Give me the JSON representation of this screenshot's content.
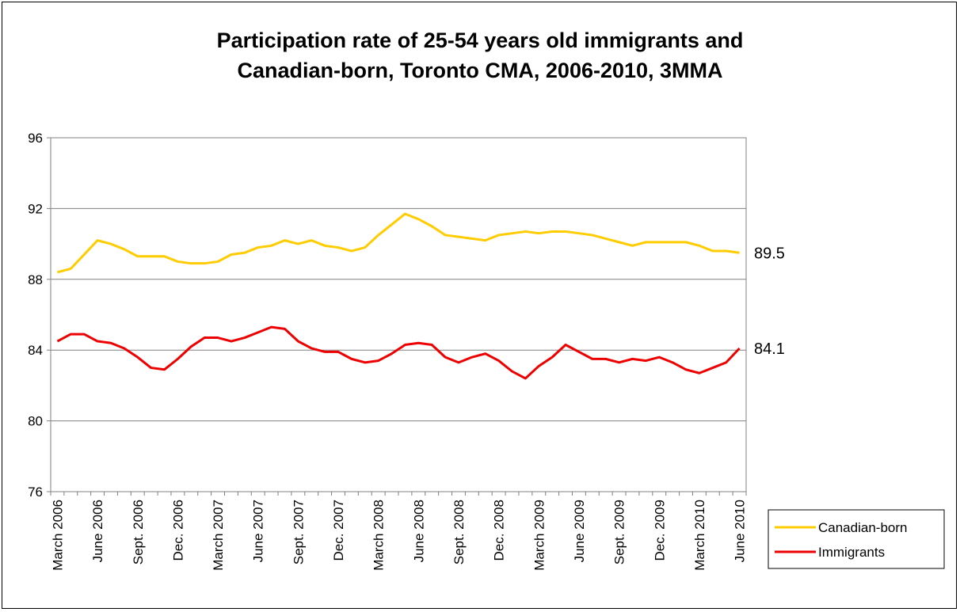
{
  "chart_data": {
    "type": "line",
    "title_line1": "Participation rate of 25-54 years old immigrants and",
    "title_line2": "Canadian-born, Toronto CMA, 2006-2010, 3MMA",
    "xlabel": "",
    "ylabel": "",
    "ylim": [
      76,
      96
    ],
    "yticks": [
      76,
      80,
      84,
      88,
      92,
      96
    ],
    "grid": true,
    "legend_position": "bottom-right",
    "x_tick_labels": [
      "March 2006",
      "June 2006",
      "Sept. 2006",
      "Dec. 2006",
      "March 2007",
      "June 2007",
      "Sept. 2007",
      "Dec. 2007",
      "March 2008",
      "June 2008",
      "Sept. 2008",
      "Dec. 2008",
      "March 2009",
      "June 2009",
      "Sept. 2009",
      "Dec. 2009",
      "March 2010",
      "June 2010"
    ],
    "x": [
      "March 2006",
      "April 2006",
      "May 2006",
      "June 2006",
      "July 2006",
      "August 2006",
      "Sept. 2006",
      "October 2006",
      "November 2006",
      "Dec. 2006",
      "January 2007",
      "February 2007",
      "March 2007",
      "April 2007",
      "May 2007",
      "June 2007",
      "July 2007",
      "August 2007",
      "Sept. 2007",
      "October 2007",
      "November 2007",
      "Dec. 2007",
      "January 2008",
      "February 2008",
      "March 2008",
      "April 2008",
      "May 2008",
      "June 2008",
      "July 2008",
      "August 2008",
      "Sept. 2008",
      "October 2008",
      "November 2008",
      "Dec. 2008",
      "January 2009",
      "February 2009",
      "March 2009",
      "April 2009",
      "May 2009",
      "June 2009",
      "July 2009",
      "August 2009",
      "Sept. 2009",
      "October 2009",
      "November 2009",
      "Dec. 2009",
      "January 2010",
      "February 2010",
      "March 2010",
      "April 2010",
      "May 2010",
      "June 2010"
    ],
    "series": [
      {
        "name": "Canadian-born",
        "color": "#FFCC00",
        "end_label": "89.5",
        "values": [
          88.4,
          88.6,
          89.4,
          90.2,
          90.0,
          89.7,
          89.3,
          89.3,
          89.3,
          89.0,
          88.9,
          88.9,
          89.0,
          89.4,
          89.5,
          89.8,
          89.9,
          90.2,
          90.0,
          90.2,
          89.9,
          89.8,
          89.6,
          89.8,
          90.5,
          91.1,
          91.7,
          91.4,
          91.0,
          90.5,
          90.4,
          90.3,
          90.2,
          90.5,
          90.6,
          90.7,
          90.6,
          90.7,
          90.7,
          90.6,
          90.5,
          90.3,
          90.1,
          89.9,
          90.1,
          90.1,
          90.1,
          90.1,
          89.9,
          89.6,
          89.6,
          89.5
        ]
      },
      {
        "name": "Immigrants",
        "color": "#EE0000",
        "end_label": "84.1",
        "values": [
          84.5,
          84.9,
          84.9,
          84.5,
          84.4,
          84.1,
          83.6,
          83.0,
          82.9,
          83.5,
          84.2,
          84.7,
          84.7,
          84.5,
          84.7,
          85.0,
          85.3,
          85.2,
          84.5,
          84.1,
          83.9,
          83.9,
          83.5,
          83.3,
          83.4,
          83.8,
          84.3,
          84.4,
          84.3,
          83.6,
          83.3,
          83.6,
          83.8,
          83.4,
          82.8,
          82.4,
          83.1,
          83.6,
          84.3,
          83.9,
          83.5,
          83.5,
          83.3,
          83.5,
          83.4,
          83.6,
          83.3,
          82.9,
          82.7,
          83.0,
          83.3,
          84.1
        ]
      }
    ]
  }
}
